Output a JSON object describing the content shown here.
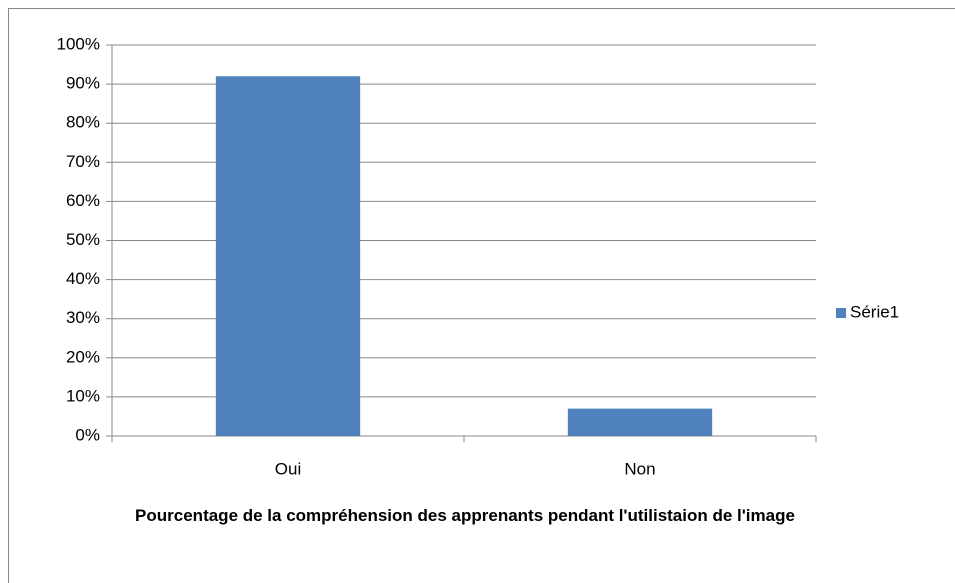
{
  "chart_data": {
    "type": "bar",
    "categories": [
      "Oui",
      "Non"
    ],
    "series": [
      {
        "name": "Série1",
        "color": "#4f81bd",
        "values": [
          92,
          7
        ]
      }
    ],
    "ylim": [
      0,
      100
    ],
    "yticks": [
      {
        "value": 0,
        "label": "0%"
      },
      {
        "value": 10,
        "label": "10%"
      },
      {
        "value": 20,
        "label": "20%"
      },
      {
        "value": 30,
        "label": "30%"
      },
      {
        "value": 40,
        "label": "40%"
      },
      {
        "value": 50,
        "label": "50%"
      },
      {
        "value": 60,
        "label": "60%"
      },
      {
        "value": 70,
        "label": "70%"
      },
      {
        "value": 80,
        "label": "80%"
      },
      {
        "value": 90,
        "label": "90%"
      },
      {
        "value": 100,
        "label": "100%"
      }
    ],
    "xlabel": "Pourcentage de la compréhension des apprenants pendant l'utilistaion de l'image",
    "grid": true,
    "legend": "right"
  }
}
